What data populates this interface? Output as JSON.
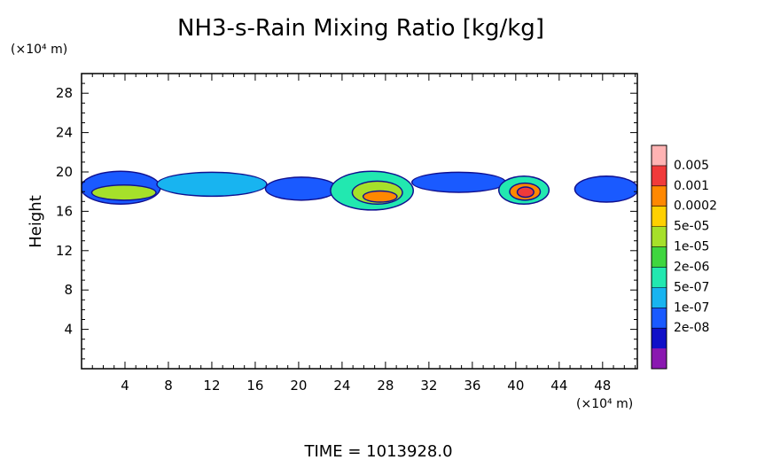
{
  "chart_data": {
    "type": "heatmap",
    "title": "NH3-s-Rain Mixing Ratio [kg/kg]",
    "ylabel": "Height",
    "x_unit_label": "(×10⁴ m)",
    "y_unit_label": "(×10⁴ m)",
    "xlim": [
      0,
      51.2
    ],
    "ylim": [
      0,
      30
    ],
    "x_ticks": [
      4,
      8,
      12,
      16,
      20,
      24,
      28,
      32,
      36,
      40,
      44,
      48
    ],
    "y_ticks": [
      4,
      8,
      12,
      16,
      20,
      24,
      28
    ],
    "colorbar": {
      "labels": [
        "0.005",
        "0.001",
        "0.0002",
        "5e-05",
        "1e-05",
        "2e-06",
        "5e-07",
        "1e-07",
        "2e-08"
      ],
      "colors": [
        "#ffb3b3",
        "#f03a3a",
        "#ff8800",
        "#ffd000",
        "#a6e02a",
        "#3fd63f",
        "#22e8b0",
        "#18b4f0",
        "#1a5aff",
        "#1010c8",
        "#8a18b0"
      ]
    },
    "time_text": "TIME = 1013928.0",
    "features": [
      {
        "x0": 0.0,
        "x1": 7.2,
        "ymin": 16.8,
        "ymax": 20.0,
        "level": "1e-07"
      },
      {
        "x0": 1.0,
        "x1": 6.8,
        "ymin": 17.2,
        "ymax": 18.6,
        "level": "5e-05"
      },
      {
        "x0": 7.0,
        "x1": 17.0,
        "ymin": 17.6,
        "ymax": 19.9,
        "level": "2e-07"
      },
      {
        "x0": 17.0,
        "x1": 23.5,
        "ymin": 17.2,
        "ymax": 19.4,
        "level": "1e-07"
      },
      {
        "x0": 23.0,
        "x1": 30.5,
        "ymin": 16.2,
        "ymax": 20.0,
        "level": "1e-06"
      },
      {
        "x0": 25.0,
        "x1": 29.5,
        "ymin": 16.8,
        "ymax": 19.0,
        "level": "5e-05"
      },
      {
        "x0": 26.0,
        "x1": 29.0,
        "ymin": 17.0,
        "ymax": 18.0,
        "level": "0.0002"
      },
      {
        "x0": 30.5,
        "x1": 39.0,
        "ymin": 18.0,
        "ymax": 19.9,
        "level": "1e-07"
      },
      {
        "x0": 38.5,
        "x1": 43.0,
        "ymin": 16.8,
        "ymax": 19.5,
        "level": "1e-06"
      },
      {
        "x0": 39.5,
        "x1": 42.2,
        "ymin": 17.2,
        "ymax": 18.8,
        "level": "0.0002"
      },
      {
        "x0": 40.2,
        "x1": 41.6,
        "ymin": 17.5,
        "ymax": 18.4,
        "level": "0.001"
      },
      {
        "x0": 45.5,
        "x1": 51.2,
        "ymin": 17.0,
        "ymax": 19.5,
        "level": "1e-07"
      }
    ]
  }
}
